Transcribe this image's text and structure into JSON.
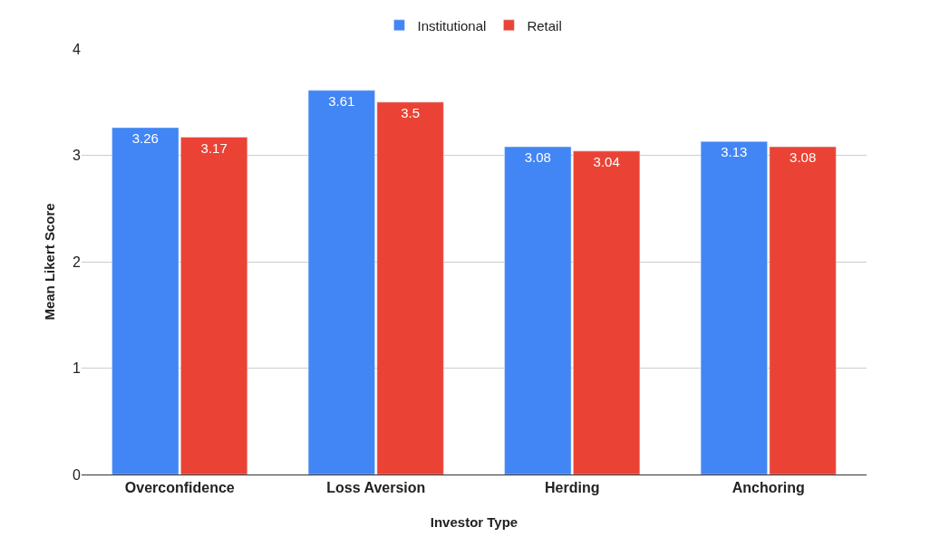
{
  "chart_data": {
    "type": "bar",
    "xlabel": "Investor Type",
    "ylabel": "Mean Likert Score",
    "categories": [
      "Overconfidence",
      "Loss Aversion",
      "Herding",
      "Anchoring"
    ],
    "series": [
      {
        "name": "Institutional",
        "color": "#4285f4",
        "values": [
          3.26,
          3.61,
          3.08,
          3.13
        ]
      },
      {
        "name": "Retail",
        "color": "#ea4335",
        "values": [
          3.17,
          3.5,
          3.04,
          3.08
        ]
      }
    ],
    "ylim": [
      0,
      4
    ],
    "yticks": [
      0,
      1,
      2,
      3,
      4
    ],
    "grid": "y",
    "legend": "top",
    "data_labels": true
  }
}
